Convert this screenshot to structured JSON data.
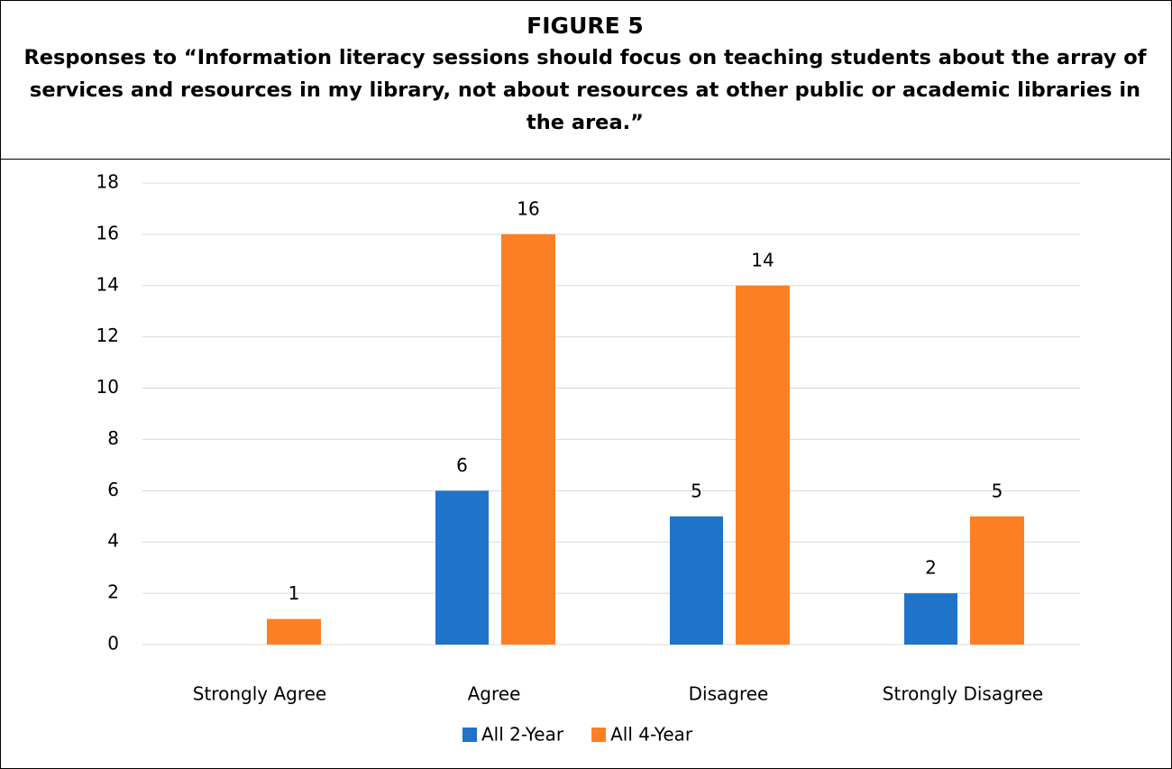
{
  "chart_data": {
    "type": "bar",
    "title": "FIGURE 5",
    "subtitle": "Responses to “Information literacy sessions should focus on teaching students about the array of services and resources in my library, not about resources at other public or academic libraries in the area.”",
    "categories": [
      "Strongly Agree",
      "Agree",
      "Disagree",
      "Strongly Disagree"
    ],
    "series": [
      {
        "name": "All 2-Year",
        "color": "#1f73c8",
        "values": [
          null,
          6,
          5,
          2
        ]
      },
      {
        "name": "All 4-Year",
        "color": "#fd7f23",
        "values": [
          1,
          16,
          14,
          5
        ]
      }
    ],
    "ylim": [
      0,
      18
    ],
    "yticks": [
      0,
      2,
      4,
      6,
      8,
      10,
      12,
      14,
      16,
      18
    ],
    "grid": true,
    "legend": "bottom"
  }
}
